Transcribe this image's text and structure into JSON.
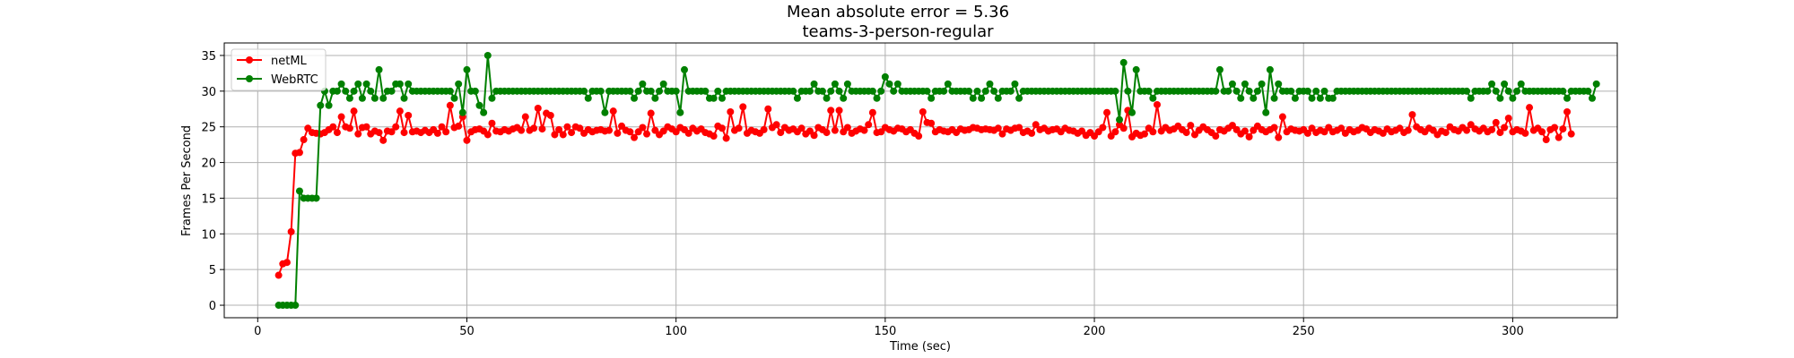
{
  "chart_data": {
    "type": "line",
    "title": "Mean absolute error = 5.36",
    "subtitle": "teams-3-person-regular",
    "xlabel": "Time (sec)",
    "ylabel": "Frames Per Second",
    "xlim": [
      -8,
      325
    ],
    "ylim": [
      -1.75,
      36.75
    ],
    "xticks": [
      0,
      50,
      100,
      150,
      200,
      250,
      300
    ],
    "yticks": [
      0,
      5,
      10,
      15,
      20,
      25,
      30,
      35
    ],
    "grid": true,
    "legend_position": "top-left",
    "x_start": 5,
    "x_step": 1,
    "series": [
      {
        "name": "netML",
        "color": "#ff0000",
        "values": [
          4.2,
          5.8,
          6.0,
          10.3,
          21.3,
          21.4,
          23.2,
          24.8,
          24.2,
          24.1,
          24.0,
          24.2,
          24.6,
          25.0,
          24.2,
          26.4,
          25.0,
          24.8,
          27.2,
          24.0,
          24.9,
          25.0,
          24.0,
          24.4,
          24.2,
          23.1,
          24.4,
          24.3,
          25.0,
          27.2,
          24.2,
          26.6,
          24.3,
          24.4,
          24.2,
          24.5,
          24.2,
          24.6,
          24.1,
          25.0,
          24.3,
          28.0,
          24.9,
          25.1,
          26.4,
          23.1,
          24.3,
          24.6,
          24.7,
          24.4,
          23.9,
          25.5,
          24.4,
          24.3,
          24.6,
          24.4,
          24.7,
          24.9,
          24.5,
          26.4,
          24.5,
          24.8,
          27.6,
          24.7,
          26.9,
          26.6,
          23.9,
          24.6,
          23.9,
          25.0,
          24.2,
          25.0,
          24.8,
          24.1,
          24.6,
          24.3,
          24.5,
          24.6,
          24.4,
          24.5,
          27.2,
          24.1,
          25.1,
          24.5,
          24.3,
          23.5,
          24.3,
          24.9,
          24.0,
          26.9,
          24.5,
          23.9,
          24.4,
          25.0,
          24.7,
          24.3,
          24.9,
          24.6,
          24.1,
          24.8,
          24.4,
          24.7,
          24.2,
          24.0,
          23.7,
          25.1,
          24.8,
          23.4,
          27.1,
          24.5,
          24.8,
          27.8,
          24.1,
          24.5,
          24.3,
          24.1,
          24.6,
          27.5,
          24.9,
          25.3,
          24.2,
          24.9,
          24.5,
          24.7,
          24.3,
          24.8,
          24.0,
          24.4,
          23.8,
          24.9,
          24.6,
          24.2,
          27.3,
          24.5,
          27.3,
          24.3,
          24.9,
          24.1,
          24.4,
          24.7,
          24.5,
          25.3,
          27.0,
          24.2,
          24.3,
          24.9,
          24.6,
          24.4,
          24.8,
          24.7,
          24.3,
          24.6,
          24.1,
          23.7,
          27.1,
          25.6,
          25.5,
          24.3,
          24.6,
          24.4,
          24.3,
          24.6,
          24.2,
          24.7,
          24.5,
          24.6,
          24.9,
          24.8,
          24.6,
          24.7,
          24.6,
          24.5,
          24.8,
          24.0,
          24.7,
          24.5,
          24.8,
          24.9,
          24.2,
          24.4,
          24.1,
          25.3,
          24.6,
          24.8,
          24.4,
          24.6,
          24.7,
          24.3,
          24.8,
          24.5,
          24.4,
          24.1,
          24.4,
          23.8,
          24.2,
          23.7,
          24.3,
          24.9,
          27.0,
          23.7,
          24.3,
          25.3,
          24.8,
          27.3,
          23.6,
          24.1,
          23.8,
          24.0,
          24.8,
          24.3,
          28.1,
          24.4,
          24.9,
          24.5,
          24.7,
          25.1,
          24.6,
          24.2,
          25.2,
          23.9,
          24.5,
          25.0,
          24.6,
          24.2,
          23.7,
          24.6,
          24.4,
          24.8,
          25.2,
          24.6,
          24.0,
          24.4,
          23.6,
          24.5,
          25.1,
          24.6,
          24.3,
          24.6,
          24.9,
          23.5,
          26.4,
          24.3,
          24.7,
          24.5,
          24.4,
          24.6,
          24.1,
          24.8,
          24.2,
          24.5,
          24.3,
          24.9,
          24.3,
          24.5,
          24.8,
          24.1,
          24.6,
          24.3,
          24.5,
          24.9,
          24.7,
          24.2,
          24.6,
          24.4,
          24.1,
          24.7,
          24.3,
          24.5,
          24.8,
          24.2,
          24.5,
          26.7,
          25.0,
          24.6,
          24.3,
          24.8,
          24.5,
          23.9,
          24.4,
          24.2,
          25.0,
          24.6,
          24.4,
          24.9,
          24.5,
          25.3,
          24.7,
          24.4,
          24.8,
          24.3,
          24.6,
          25.6,
          24.2,
          24.9,
          26.2,
          24.3,
          24.6,
          24.4,
          24.1,
          27.7,
          24.5,
          24.8,
          24.3,
          23.2,
          24.6,
          24.9,
          23.5,
          24.7,
          27.1,
          24.0
        ]
      },
      {
        "name": "WebRTC",
        "color": "#008000",
        "values": [
          0,
          0,
          0,
          0,
          0,
          16,
          15,
          15,
          15,
          15,
          28,
          30,
          28,
          30,
          30,
          31,
          30,
          29,
          30,
          31,
          29,
          31,
          30,
          29,
          33,
          29,
          30,
          30,
          31,
          31,
          29,
          31,
          30,
          30,
          30,
          30,
          30,
          30,
          30,
          30,
          30,
          30,
          29,
          31,
          27,
          33,
          30,
          30,
          28,
          27,
          35,
          29,
          30,
          30,
          30,
          30,
          30,
          30,
          30,
          30,
          30,
          30,
          30,
          30,
          30,
          30,
          30,
          30,
          30,
          30,
          30,
          30,
          30,
          30,
          29,
          30,
          30,
          30,
          27,
          30,
          30,
          30,
          30,
          30,
          30,
          29,
          30,
          31,
          30,
          30,
          29,
          30,
          31,
          30,
          30,
          30,
          27,
          33,
          30,
          30,
          30,
          30,
          30,
          29,
          29,
          30,
          29,
          30,
          30,
          30,
          30,
          30,
          30,
          30,
          30,
          30,
          30,
          30,
          30,
          30,
          30,
          30,
          30,
          30,
          29,
          30,
          30,
          30,
          31,
          30,
          30,
          29,
          30,
          31,
          30,
          29,
          31,
          30,
          30,
          30,
          30,
          30,
          30,
          29,
          30,
          32,
          31,
          30,
          31,
          30,
          30,
          30,
          30,
          30,
          30,
          30,
          29,
          30,
          30,
          30,
          31,
          30,
          30,
          30,
          30,
          30,
          29,
          30,
          29,
          30,
          31,
          30,
          29,
          30,
          30,
          30,
          31,
          29,
          30,
          30,
          30,
          30,
          30,
          30,
          30,
          30,
          30,
          30,
          30,
          30,
          30,
          30,
          30,
          30,
          30,
          30,
          30,
          30,
          30,
          30,
          30,
          26,
          34,
          30,
          27,
          33,
          30,
          30,
          30,
          29,
          30,
          30,
          30,
          30,
          30,
          30,
          30,
          30,
          30,
          30,
          30,
          30,
          30,
          30,
          30,
          33,
          30,
          30,
          31,
          30,
          29,
          31,
          30,
          29,
          30,
          31,
          27,
          33,
          29,
          31,
          30,
          30,
          30,
          29,
          30,
          30,
          30,
          29,
          30,
          29,
          30,
          29,
          29,
          30,
          30,
          30,
          30,
          30,
          30,
          30,
          30,
          30,
          30,
          30,
          30,
          30,
          30,
          30,
          30,
          30,
          30,
          30,
          30,
          30,
          30,
          30,
          30,
          30,
          30,
          30,
          30,
          30,
          30,
          30,
          30,
          29,
          30,
          30,
          30,
          30,
          31,
          30,
          29,
          31,
          30,
          29,
          30,
          31,
          30,
          30,
          30,
          30,
          30,
          30,
          30,
          30,
          30,
          30,
          29,
          30,
          30,
          30,
          30,
          30,
          29,
          31
        ]
      }
    ]
  }
}
